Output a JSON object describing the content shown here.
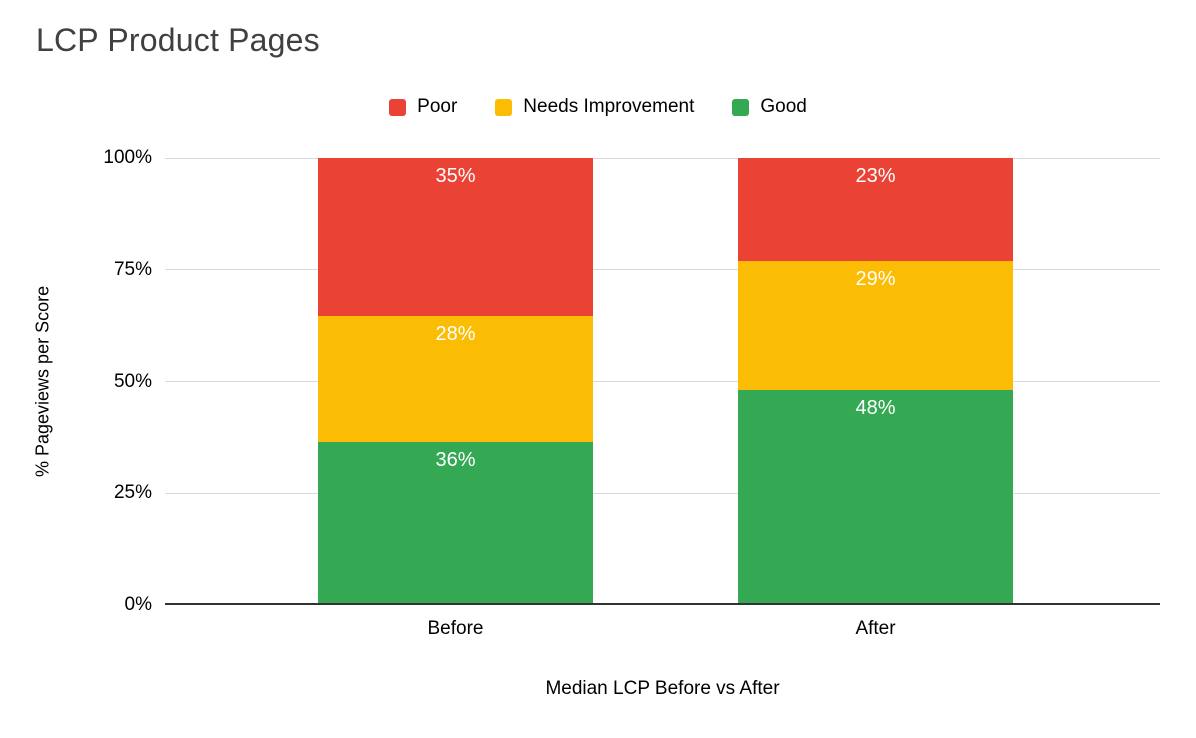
{
  "title": "LCP Product Pages",
  "chart_data": {
    "type": "bar",
    "variant": "stacked-column-100",
    "title": "LCP Product Pages",
    "categories": [
      "Before",
      "After"
    ],
    "series": [
      {
        "name": "Good",
        "color": "#34A853",
        "values": [
          36,
          48
        ],
        "labels": [
          "36%",
          "48%"
        ]
      },
      {
        "name": "Needs Improvement",
        "color": "#FBBC04",
        "values": [
          28,
          29
        ],
        "labels": [
          "28%",
          "29%"
        ]
      },
      {
        "name": "Poor",
        "color": "#EA4335",
        "values": [
          35,
          23
        ],
        "labels": [
          "35%",
          "23%"
        ]
      }
    ],
    "legend_order": [
      "Poor",
      "Needs Improvement",
      "Good"
    ],
    "legend_position": "top",
    "xlabel": "Median LCP Before vs After",
    "ylabel": "% Pageviews per Score",
    "ylim": [
      0,
      100
    ],
    "yticks": [
      {
        "value": 0,
        "label": "0%"
      },
      {
        "value": 25,
        "label": "25%"
      },
      {
        "value": 50,
        "label": "50%"
      },
      {
        "value": 75,
        "label": "75%"
      },
      {
        "value": 100,
        "label": "100%"
      }
    ],
    "grid": true
  },
  "colors": {
    "grid": "#d9d9d9",
    "axis": "#333333",
    "title": "#404040",
    "axis_text": "#000000",
    "data_label": "#ffffff",
    "background": "#ffffff"
  }
}
